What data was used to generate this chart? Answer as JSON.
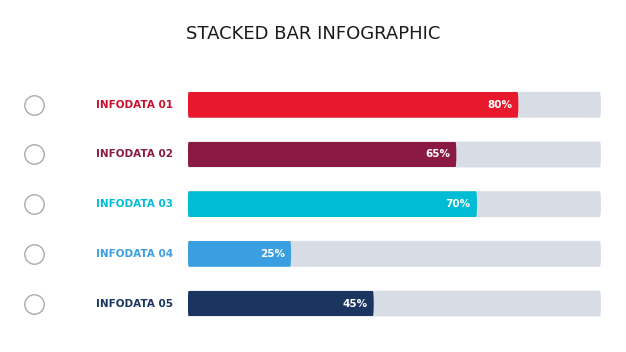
{
  "title": "STACKED BAR INFOGRAPHIC",
  "title_fontsize": 13,
  "title_fontweight": "normal",
  "background_color": "#ffffff",
  "categories": [
    "INFODATA 01",
    "INFODATA 02",
    "INFODATA 03",
    "INFODATA 04",
    "INFODATA 05"
  ],
  "values": [
    80,
    65,
    70,
    25,
    45
  ],
  "bar_colors": [
    "#e8192c",
    "#8b1a42",
    "#00bcd4",
    "#3a9fe0",
    "#1a3560"
  ],
  "label_colors": [
    "#c8102e",
    "#8b1a42",
    "#00bcd4",
    "#3a9fe0",
    "#1a3560"
  ],
  "remaining_color_top": "#e8eaed",
  "remaining_color_bot": "#d0d4db",
  "bar_height": 0.52,
  "total": 100,
  "label_fontsize": 7.5,
  "cat_fontsize": 7.5,
  "icon_fontsize": 12,
  "rounding_size": 0.26
}
